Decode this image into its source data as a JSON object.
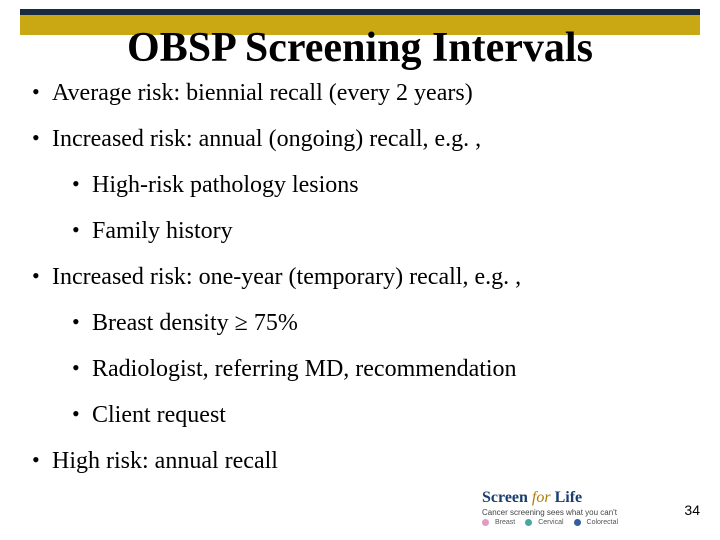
{
  "colors": {
    "band_dark": "#1a2a40",
    "band_gold": "#c9a814",
    "text": "#000000",
    "bg": "#ffffff",
    "logo_blue": "#1a3e6f",
    "logo_gold": "#b07a00",
    "dot_breast": "#e39bc4",
    "dot_cervical": "#4aa6a0",
    "dot_colorectal": "#2f5f9e"
  },
  "title": "OBSP Screening Intervals",
  "bullets": [
    {
      "level": 1,
      "text": "Average risk: biennial recall (every 2 years)"
    },
    {
      "level": 1,
      "text": "Increased risk: annual (ongoing) recall, e.g. ,"
    },
    {
      "level": 2,
      "text": "High-risk pathology lesions"
    },
    {
      "level": 2,
      "text": "Family history"
    },
    {
      "level": 1,
      "text": "Increased risk: one-year (temporary) recall, e.g. ,"
    },
    {
      "level": 2,
      "text": "Breast density ≥ 75%"
    },
    {
      "level": 2,
      "text": "Radiologist, referring MD, recommendation"
    },
    {
      "level": 2,
      "text": "Client request"
    },
    {
      "level": 1,
      "text": "High risk: annual recall"
    }
  ],
  "page_number": "34",
  "logo": {
    "screen": "Screen",
    "for": " for ",
    "life": "Life",
    "tagline": "Cancer screening sees what you can't",
    "dots": [
      {
        "label": "Breast",
        "color_key": "dot_breast"
      },
      {
        "label": "Cervical",
        "color_key": "dot_cervical"
      },
      {
        "label": "Colorectal",
        "color_key": "dot_colorectal"
      }
    ]
  }
}
